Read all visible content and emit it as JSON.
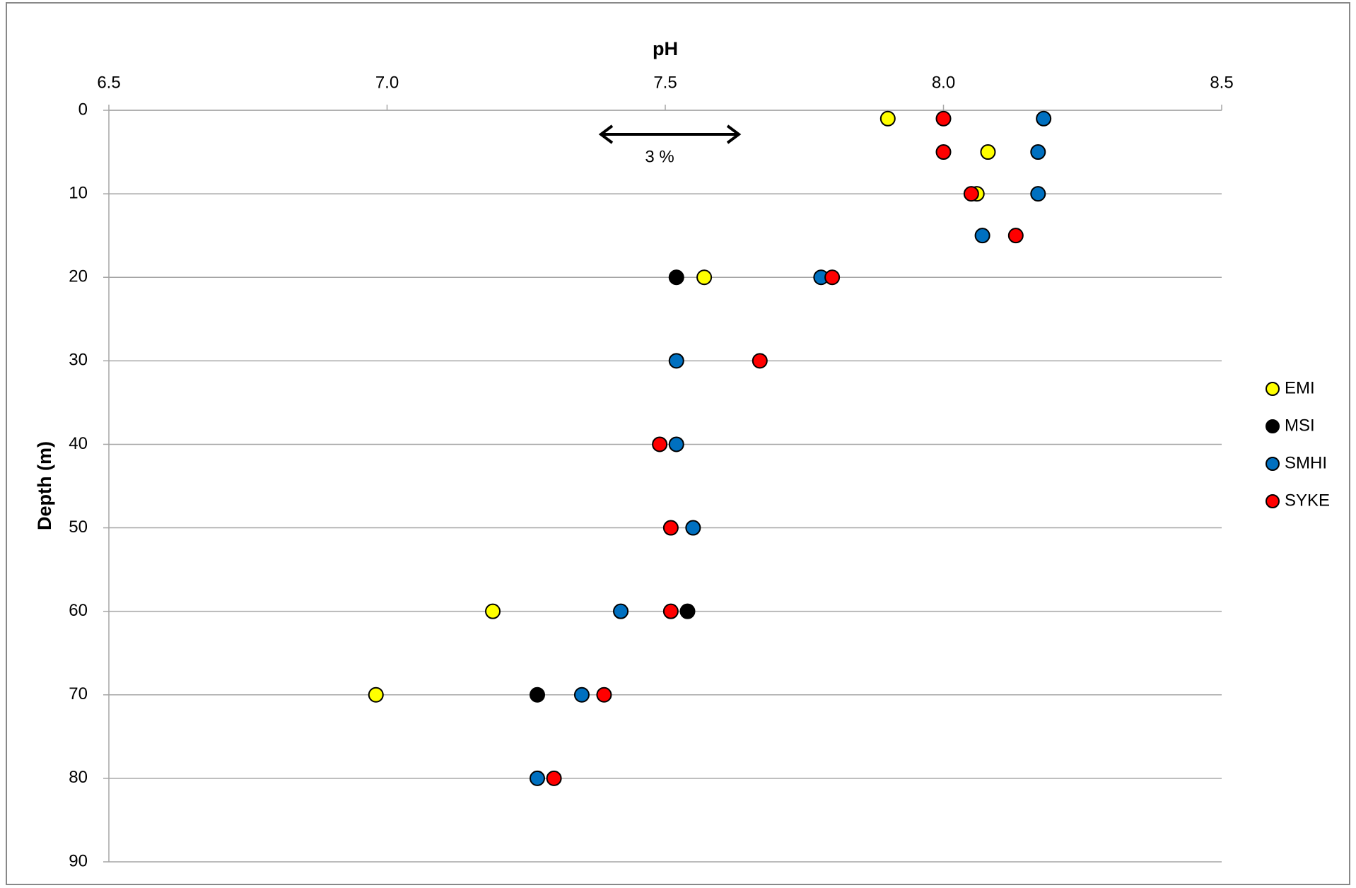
{
  "chart_data": {
    "type": "scatter",
    "x_label": "pH",
    "y_label": "Depth (m)",
    "xlim": [
      6.5,
      8.5
    ],
    "xticks": [
      6.5,
      {
        "value": 7,
        "label": "7.0"
      },
      7.5,
      {
        "value": 8,
        "label": "8.0"
      },
      8.5
    ],
    "ylim": [
      0,
      90
    ],
    "yticks": [
      0,
      10,
      20,
      30,
      40,
      50,
      60,
      70,
      80,
      90
    ],
    "y_inverted": true,
    "x_axis_position": "top",
    "grid": true,
    "legend": "right",
    "annotations": [
      "3 %"
    ],
    "series": [
      {
        "name": "EMI",
        "color": "#ffff00",
        "x": [
          7.9,
          8.08,
          8.06,
          7.57,
          7.19,
          6.98
        ],
        "values": [
          1,
          5,
          10,
          20,
          60,
          70
        ]
      },
      {
        "name": "MSI",
        "color": "#000000",
        "x": [
          7.52,
          7.54,
          7.27
        ],
        "values": [
          20,
          60,
          70
        ]
      },
      {
        "name": "SMHI",
        "color": "#0070c0",
        "x": [
          8.18,
          8.17,
          8.17,
          8.07,
          7.78,
          7.52,
          7.52,
          7.55,
          7.42,
          7.35,
          7.27
        ],
        "values": [
          1,
          5,
          10,
          15,
          20,
          30,
          40,
          50,
          60,
          70,
          80
        ]
      },
      {
        "name": "SYKE",
        "color": "#ff0000",
        "x": [
          8.0,
          8.0,
          8.05,
          8.13,
          7.8,
          7.67,
          7.49,
          7.51,
          7.51,
          7.39,
          7.3
        ],
        "values": [
          1,
          5,
          10,
          15,
          20,
          30,
          40,
          50,
          60,
          70,
          80
        ]
      }
    ]
  }
}
